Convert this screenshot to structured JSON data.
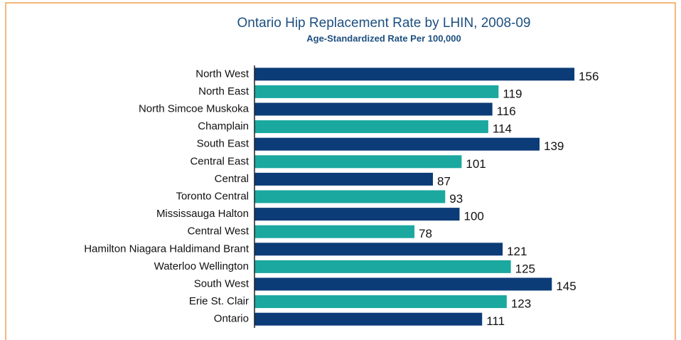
{
  "chart_data": {
    "type": "barh",
    "title": "Ontario Hip Replacement Rate by LHIN, 2008-09",
    "subtitle": "Age-Standardized Rate Per 100,000",
    "categories": [
      "North West",
      "North East",
      "North Simcoe Muskoka",
      "Champlain",
      "South East",
      "Central East",
      "Central",
      "Toronto Central",
      "Mississauga Halton",
      "Central West",
      "Hamilton Niagara Haldimand Brant",
      "Waterloo Wellington",
      "South West",
      "Erie St. Clair",
      "Ontario"
    ],
    "values": [
      156,
      119,
      116,
      114,
      139,
      101,
      87,
      93,
      100,
      78,
      121,
      125,
      145,
      123,
      111
    ],
    "colors": [
      "#0c3c78",
      "#1aa89f",
      "#0c3c78",
      "#1aa89f",
      "#0c3c78",
      "#1aa89f",
      "#0c3c78",
      "#1aa89f",
      "#0c3c78",
      "#1aa89f",
      "#0c3c78",
      "#1aa89f",
      "#0c3c78",
      "#1aa89f",
      "#0c3c78"
    ],
    "xlim": [
      0,
      180
    ]
  }
}
